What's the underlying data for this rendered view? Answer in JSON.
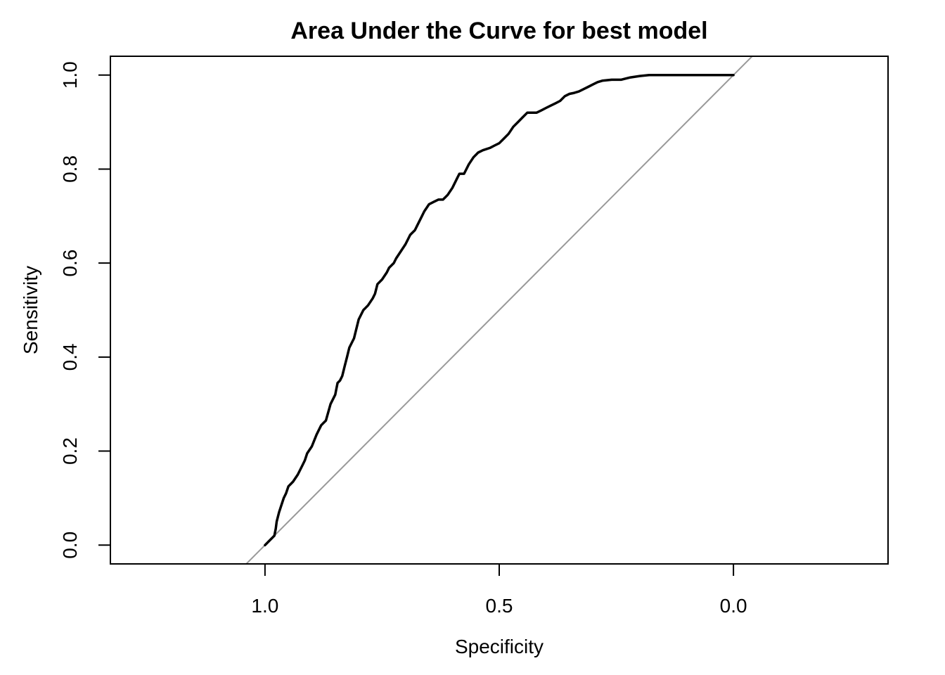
{
  "chart_data": {
    "type": "line",
    "title": "Area Under the Curve for best model",
    "xlabel": "Specificity",
    "ylabel": "Sensitivity",
    "x_reversed": true,
    "xlim": [
      1.33,
      -0.33
    ],
    "ylim": [
      -0.04,
      1.04
    ],
    "x_ticks": [
      1.0,
      0.5,
      0.0
    ],
    "x_tick_labels": [
      "1.0",
      "0.5",
      "0.0"
    ],
    "y_ticks": [
      0.0,
      0.2,
      0.4,
      0.6,
      0.8,
      1.0
    ],
    "y_tick_labels": [
      "0.0",
      "0.2",
      "0.4",
      "0.6",
      "0.8",
      "1.0"
    ],
    "grid": false,
    "legend": "none",
    "colors": {
      "roc": "#000000",
      "reference": "#999999"
    },
    "reference_line": {
      "description": "diagonal",
      "intercept": 1,
      "slope": -1
    },
    "series": [
      {
        "specificity": [
          1.0,
          0.99,
          0.98,
          0.977,
          0.975,
          0.97,
          0.965,
          0.96,
          0.955,
          0.95,
          0.945,
          0.94,
          0.93,
          0.92,
          0.915,
          0.91,
          0.9,
          0.89,
          0.88,
          0.875,
          0.87,
          0.86,
          0.85,
          0.848,
          0.845,
          0.84,
          0.835,
          0.83,
          0.825,
          0.82,
          0.81,
          0.8,
          0.79,
          0.785,
          0.78,
          0.77,
          0.765,
          0.76,
          0.75,
          0.74,
          0.735,
          0.725,
          0.72,
          0.71,
          0.7,
          0.69,
          0.68,
          0.675,
          0.665,
          0.66,
          0.65,
          0.64,
          0.63,
          0.62,
          0.61,
          0.6,
          0.59,
          0.585,
          0.575,
          0.565,
          0.555,
          0.545,
          0.535,
          0.52,
          0.51,
          0.5,
          0.49,
          0.48,
          0.47,
          0.46,
          0.45,
          0.44,
          0.43,
          0.42,
          0.41,
          0.4,
          0.39,
          0.38,
          0.37,
          0.36,
          0.35,
          0.34,
          0.33,
          0.32,
          0.31,
          0.3,
          0.29,
          0.28,
          0.26,
          0.24,
          0.22,
          0.2,
          0.18,
          0.17,
          0.15,
          0.12,
          0.08,
          0.04,
          0.0
        ],
        "sensitivity": [
          0.0,
          0.01,
          0.02,
          0.035,
          0.05,
          0.07,
          0.085,
          0.1,
          0.11,
          0.125,
          0.13,
          0.135,
          0.15,
          0.17,
          0.18,
          0.195,
          0.21,
          0.235,
          0.255,
          0.26,
          0.265,
          0.3,
          0.32,
          0.33,
          0.345,
          0.35,
          0.36,
          0.38,
          0.4,
          0.42,
          0.44,
          0.48,
          0.5,
          0.505,
          0.51,
          0.525,
          0.535,
          0.555,
          0.565,
          0.58,
          0.59,
          0.6,
          0.61,
          0.625,
          0.64,
          0.66,
          0.67,
          0.68,
          0.7,
          0.71,
          0.725,
          0.73,
          0.735,
          0.735,
          0.745,
          0.76,
          0.78,
          0.79,
          0.79,
          0.81,
          0.825,
          0.835,
          0.84,
          0.845,
          0.85,
          0.855,
          0.865,
          0.875,
          0.89,
          0.9,
          0.91,
          0.92,
          0.92,
          0.92,
          0.925,
          0.93,
          0.935,
          0.94,
          0.945,
          0.955,
          0.96,
          0.962,
          0.965,
          0.97,
          0.975,
          0.98,
          0.985,
          0.988,
          0.99,
          0.99,
          0.995,
          0.998,
          1.0,
          1.0,
          1.0,
          1.0,
          1.0,
          1.0,
          1.0
        ]
      }
    ]
  }
}
